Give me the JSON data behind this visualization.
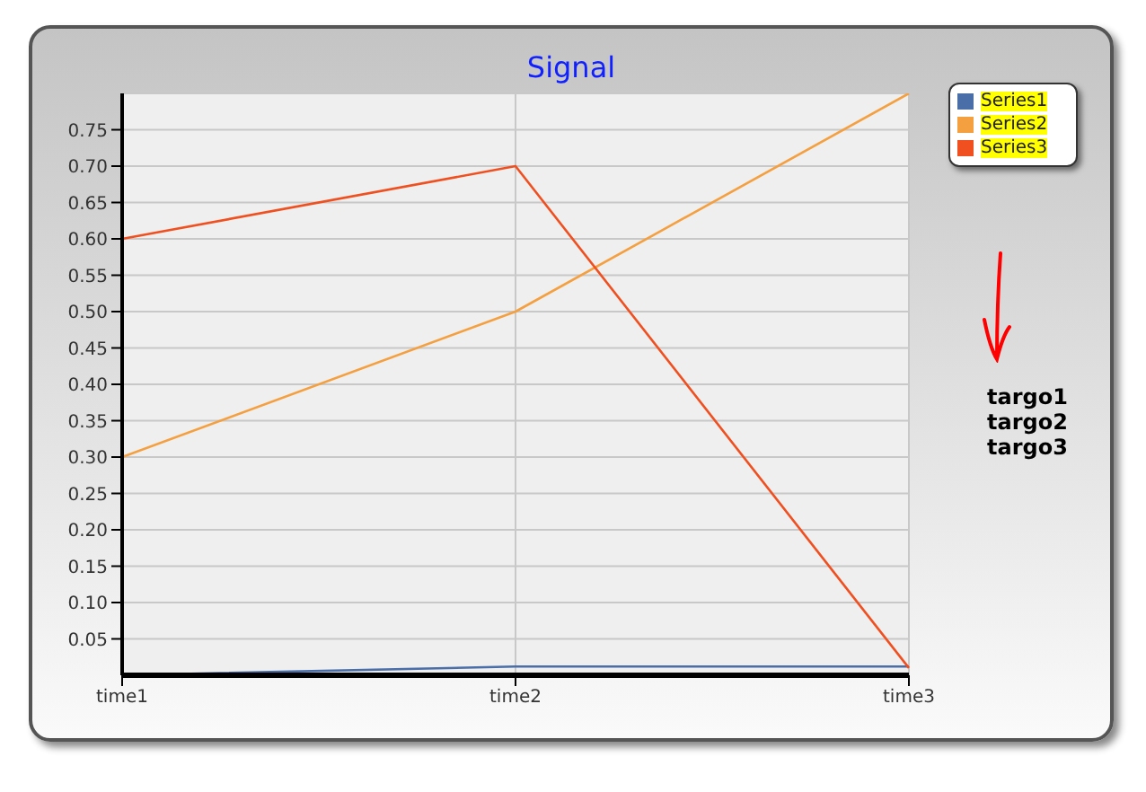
{
  "chart_data": {
    "type": "line",
    "title": "Signal",
    "categories": [
      "time1",
      "time2",
      "time3"
    ],
    "series": [
      {
        "name": "Series1",
        "color": "#4a6ea8",
        "values": [
          0,
          0.012,
          0.012
        ]
      },
      {
        "name": "Series2",
        "color": "#f5a040",
        "values": [
          0.3,
          0.5,
          0.8
        ]
      },
      {
        "name": "Series3",
        "color": "#f05020",
        "values": [
          0.6,
          0.7,
          0.01
        ]
      }
    ],
    "ylim": [
      0,
      0.8
    ],
    "yticks": [
      {
        "value": 0.05,
        "label": "0.05"
      },
      {
        "value": 0.1,
        "label": "0.10"
      },
      {
        "value": 0.15,
        "label": "0.15"
      },
      {
        "value": 0.2,
        "label": "0.20"
      },
      {
        "value": 0.25,
        "label": "0.25"
      },
      {
        "value": 0.3,
        "label": "0.30"
      },
      {
        "value": 0.35,
        "label": "0.35"
      },
      {
        "value": 0.4,
        "label": "0.40"
      },
      {
        "value": 0.45,
        "label": "0.45"
      },
      {
        "value": 0.5,
        "label": "0.50"
      },
      {
        "value": 0.55,
        "label": "0.55"
      },
      {
        "value": 0.6,
        "label": "0.60"
      },
      {
        "value": 0.65,
        "label": "0.65"
      },
      {
        "value": 0.7,
        "label": "0.70"
      },
      {
        "value": 0.75,
        "label": "0.75"
      }
    ],
    "grid": true,
    "legend": "top right",
    "marker": "none",
    "line_style": "solid",
    "annotations": [
      "targo1",
      "targo2",
      "targo3"
    ]
  }
}
